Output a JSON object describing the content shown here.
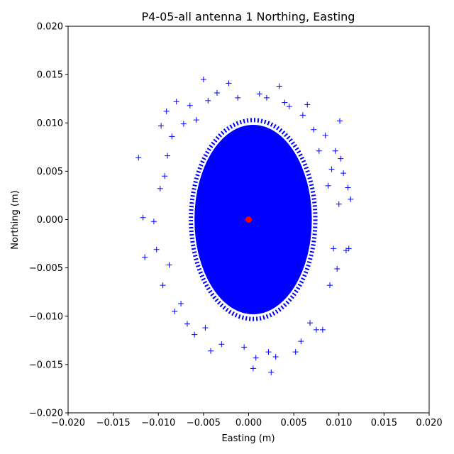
{
  "chart_data": {
    "type": "scatter",
    "title": "P4-05-all antenna 1 Northing, Easting",
    "xlabel": "Easting (m)",
    "ylabel": "Northing (m)",
    "xlim": [
      -0.02,
      0.02
    ],
    "ylim": [
      -0.02,
      0.02
    ],
    "xticks": [
      "−0.020",
      "−0.015",
      "−0.010",
      "−0.005",
      "0.000",
      "0.005",
      "0.010",
      "0.015",
      "0.020"
    ],
    "yticks": [
      "−0.020",
      "−0.015",
      "−0.010",
      "−0.005",
      "0.000",
      "0.005",
      "0.010",
      "0.015",
      "0.020"
    ],
    "grid": false,
    "series": [
      {
        "marker": "+",
        "color": "#0000ff",
        "core_center": [
          0.0005,
          0.0
        ],
        "core_radius": [
          0.0065,
          0.0098
        ],
        "points": [
          [
            -0.0122,
            0.0064
          ],
          [
            -0.0117,
            0.0002
          ],
          [
            -0.0115,
            -0.0039
          ],
          [
            -0.0105,
            -0.0002
          ],
          [
            -0.0102,
            -0.0031
          ],
          [
            -0.0098,
            0.0032
          ],
          [
            -0.0097,
            0.0097
          ],
          [
            -0.0095,
            -0.0068
          ],
          [
            -0.0093,
            0.0045
          ],
          [
            -0.0091,
            0.0112
          ],
          [
            -0.009,
            0.0066
          ],
          [
            -0.0088,
            -0.0047
          ],
          [
            -0.0085,
            0.0086
          ],
          [
            -0.0082,
            -0.0095
          ],
          [
            -0.008,
            0.0122
          ],
          [
            -0.0075,
            -0.0087
          ],
          [
            -0.0072,
            0.0099
          ],
          [
            -0.0068,
            -0.0108
          ],
          [
            -0.0065,
            0.0118
          ],
          [
            -0.006,
            -0.0119
          ],
          [
            -0.0058,
            0.0103
          ],
          [
            -0.005,
            0.0145
          ],
          [
            -0.0048,
            -0.0112
          ],
          [
            -0.0045,
            0.0123
          ],
          [
            -0.0042,
            -0.0136
          ],
          [
            -0.0035,
            0.0131
          ],
          [
            -0.003,
            -0.0129
          ],
          [
            -0.0022,
            0.0141
          ],
          [
            -0.0012,
            0.0126
          ],
          [
            -0.0005,
            -0.0132
          ],
          [
            0.0005,
            -0.0154
          ],
          [
            0.0008,
            -0.0143
          ],
          [
            0.0012,
            0.013
          ],
          [
            0.002,
            0.0126
          ],
          [
            0.0022,
            -0.0137
          ],
          [
            0.0025,
            -0.0158
          ],
          [
            0.003,
            -0.0142
          ],
          [
            0.0034,
            0.0138
          ],
          [
            0.004,
            0.0121
          ],
          [
            0.0045,
            0.0117
          ],
          [
            0.0052,
            -0.0137
          ],
          [
            0.0058,
            -0.0126
          ],
          [
            0.006,
            0.0108
          ],
          [
            0.0065,
            0.0119
          ],
          [
            0.0068,
            -0.0107
          ],
          [
            0.0072,
            0.0093
          ],
          [
            0.0075,
            -0.0114
          ],
          [
            0.0078,
            0.0071
          ],
          [
            0.0082,
            -0.0114
          ],
          [
            0.0085,
            0.0087
          ],
          [
            0.0088,
            0.0035
          ],
          [
            0.009,
            -0.0068
          ],
          [
            0.0092,
            0.0052
          ],
          [
            0.0094,
            -0.003
          ],
          [
            0.0096,
            0.0071
          ],
          [
            0.0098,
            -0.0051
          ],
          [
            0.01,
            0.0016
          ],
          [
            0.0101,
            0.0102
          ],
          [
            0.0102,
            0.0063
          ],
          [
            0.0105,
            0.0048
          ],
          [
            0.0108,
            -0.0032
          ],
          [
            0.011,
            0.0033
          ],
          [
            0.0111,
            -0.003
          ],
          [
            0.0113,
            0.0021
          ]
        ]
      },
      {
        "marker": "o",
        "color": "#ff0000",
        "points": [
          [
            0.0,
            0.0
          ]
        ]
      }
    ]
  }
}
